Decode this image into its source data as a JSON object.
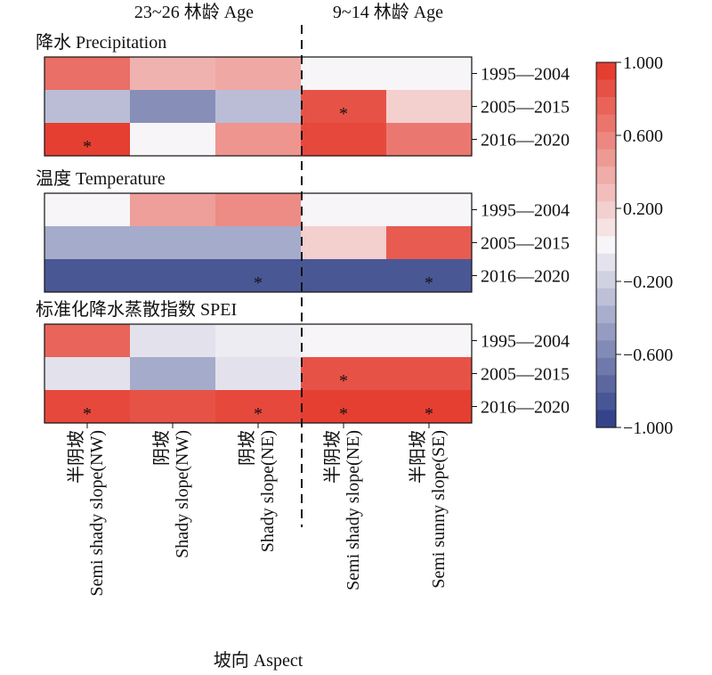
{
  "chart_data": {
    "type": "heatmap",
    "age_groups": [
      "23~26 林龄 Age",
      "9~14 林龄 Age"
    ],
    "x_axis_title": "坡向 Aspect",
    "columns": [
      {
        "cn": "半阴坡",
        "en": "Semi shady slope(NW)"
      },
      {
        "cn": "阴坡",
        "en": "Shady slope(NW)"
      },
      {
        "cn": "阴坡",
        "en": "Shady slope(NE)"
      },
      {
        "cn": "半阴坡",
        "en": "Semi shady slope(NE)"
      },
      {
        "cn": "半阳坡",
        "en": "Semi sunny slope(SE)"
      }
    ],
    "rows": [
      "1995—2004",
      "2005—2015",
      "2016—2020"
    ],
    "panels": [
      {
        "title": "降水 Precipitation",
        "values": [
          [
            0.7,
            0.35,
            0.4,
            0.0,
            0.0
          ],
          [
            -0.3,
            -0.55,
            -0.3,
            0.85,
            0.2
          ],
          [
            0.95,
            0.0,
            0.5,
            0.9,
            0.65
          ]
        ],
        "significant": [
          [
            false,
            false,
            false,
            false,
            false
          ],
          [
            false,
            false,
            false,
            true,
            false
          ],
          [
            true,
            false,
            false,
            false,
            false
          ]
        ]
      },
      {
        "title": "温度 Temperature",
        "values": [
          [
            0.0,
            0.45,
            0.55,
            0.0,
            0.0
          ],
          [
            -0.4,
            -0.4,
            -0.4,
            0.2,
            0.8
          ],
          [
            -0.85,
            -0.85,
            -0.85,
            -0.85,
            -0.85
          ]
        ],
        "significant": [
          [
            false,
            false,
            false,
            false,
            false
          ],
          [
            false,
            false,
            false,
            false,
            false
          ],
          [
            false,
            false,
            true,
            false,
            true
          ]
        ]
      },
      {
        "title": "标准化降水蒸散指数 SPEI",
        "values": [
          [
            0.75,
            -0.1,
            -0.05,
            0.0,
            0.0
          ],
          [
            -0.1,
            -0.4,
            -0.1,
            0.85,
            0.85
          ],
          [
            0.9,
            0.85,
            0.9,
            0.95,
            0.95
          ]
        ],
        "significant": [
          [
            false,
            false,
            false,
            false,
            false
          ],
          [
            false,
            false,
            false,
            true,
            false
          ],
          [
            true,
            false,
            true,
            true,
            true
          ]
        ]
      }
    ],
    "significance_marker": "*",
    "colorbar": {
      "range": [
        -1.0,
        1.0
      ],
      "ticks": [
        1.0,
        0.6,
        0.2,
        -0.2,
        -0.6,
        -1.0
      ],
      "tick_labels": [
        "1.000",
        "0.600",
        "0.200",
        "−0.200",
        "−0.600",
        "−1.000"
      ],
      "colors": {
        "low": "#2b3b84",
        "mid": "#f7f5f8",
        "high": "#e43527"
      },
      "levels": 21
    }
  }
}
